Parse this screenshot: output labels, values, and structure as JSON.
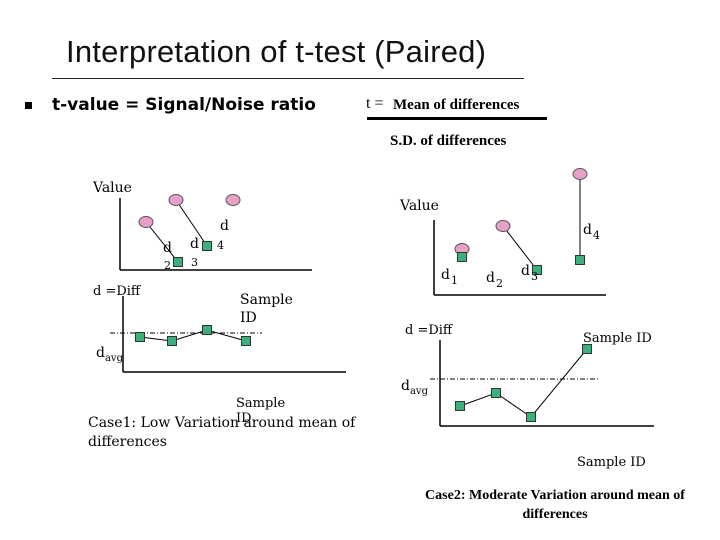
{
  "title": "Interpretation of t-test (Paired)",
  "bullet_text": "t-value = Signal/Noise ratio",
  "formula": {
    "t": "t =",
    "numerator": "Mean of differences",
    "denominator": "S.D. of differences"
  },
  "case1": {
    "value_axis_label": "Value",
    "d_labels": [
      "d",
      "2",
      "d",
      "3",
      "d",
      "4"
    ],
    "diff_axis_label": "d =Diff",
    "sample_id_label_top": "Sample ID",
    "davg_label": "d",
    "davg_sub": "avg",
    "sample_id_label_bottom": "Sample ID",
    "caption": "Case1: Low Variation around mean of differences"
  },
  "case2": {
    "value_axis_label": "Value",
    "d_labels": [
      "d",
      "1",
      "d",
      "2",
      "d",
      "3",
      "d",
      "4"
    ],
    "diff_axis_label": "d =Diff",
    "sample_id_label_top": "Sample ID",
    "davg_label": "d",
    "davg_sub": "avg",
    "sample_id_label_bottom": "Sample ID",
    "caption": "Case2: Moderate Variation around mean of differences"
  },
  "colors": {
    "before_marker": "#e8a0c8",
    "after_marker": "#3ab07a",
    "marker_stroke": "#333333",
    "mean_line": "#000000"
  }
}
